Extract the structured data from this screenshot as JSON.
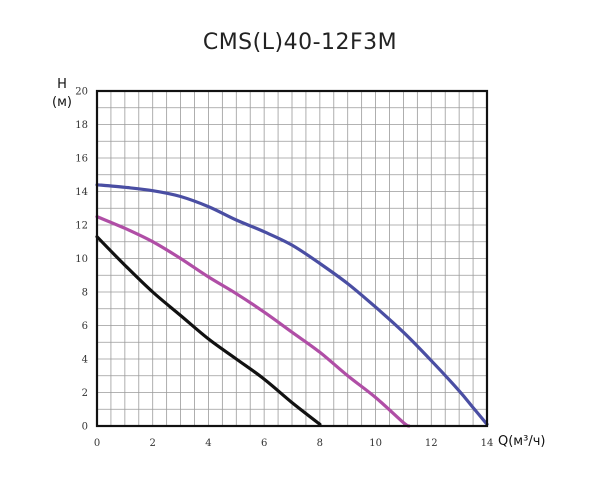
{
  "chart_data": {
    "type": "line",
    "title": "CMS(L)40-12F3M",
    "ylabel_symbol": "H",
    "ylabel_unit": "(м)",
    "xlabel": "Q(м³/ч)",
    "xlim": [
      0,
      14
    ],
    "ylim": [
      0,
      20
    ],
    "xticks": [
      0,
      2,
      4,
      6,
      8,
      10,
      12,
      14
    ],
    "yticks": [
      0,
      2,
      4,
      6,
      8,
      10,
      12,
      14,
      16,
      18,
      20
    ],
    "grid": true,
    "series": [
      {
        "color": "#4a4ea3",
        "x": [
          0,
          1,
          2,
          3,
          4,
          5,
          6,
          7,
          8,
          9,
          10,
          11,
          12,
          13,
          13.5,
          14
        ],
        "y": [
          14.4,
          14.25,
          14.05,
          13.7,
          13.1,
          12.3,
          11.6,
          10.8,
          9.7,
          8.5,
          7.1,
          5.6,
          3.9,
          2.1,
          1.1,
          0.1
        ]
      },
      {
        "color": "#b04ea6",
        "x": [
          0,
          1,
          2,
          3,
          4,
          5,
          6,
          7,
          8,
          9,
          10,
          11,
          11.2
        ],
        "y": [
          12.5,
          11.8,
          11.0,
          10.0,
          8.9,
          7.9,
          6.8,
          5.6,
          4.4,
          3.0,
          1.7,
          0.2,
          0.0
        ]
      },
      {
        "color": "#111111",
        "x": [
          0,
          1,
          2,
          3,
          4,
          5,
          6,
          7,
          8
        ],
        "y": [
          11.3,
          9.6,
          8.0,
          6.6,
          5.2,
          4.0,
          2.8,
          1.4,
          0.1
        ]
      }
    ]
  }
}
